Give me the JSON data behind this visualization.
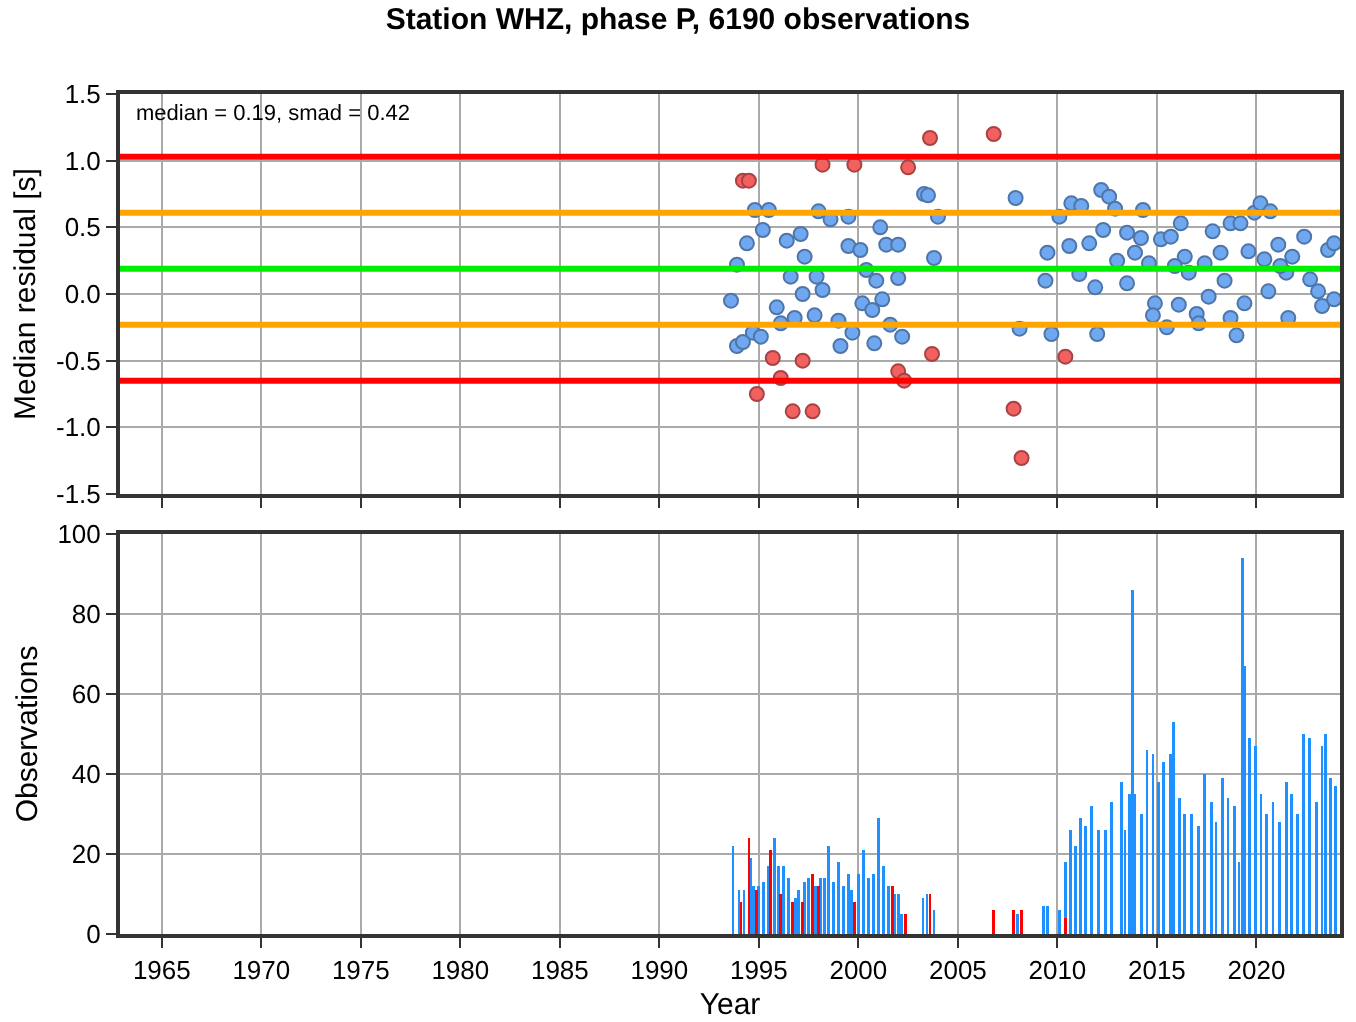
{
  "chart_data": [
    {
      "type": "scatter",
      "title": "Station WHZ, phase P, 6190 observations",
      "ylabel": "Median residual [s]",
      "annotations": [
        "median = 0.19, smad = 0.42"
      ],
      "xlim": [
        1962.9,
        2024.2
      ],
      "xticks": [
        1965,
        1970,
        1975,
        1980,
        1985,
        1990,
        1995,
        2000,
        2005,
        2010,
        2015,
        2020
      ],
      "ylim": [
        -1.5,
        1.5
      ],
      "yticks": [
        {
          "value": -1.5,
          "label": "-1.5"
        },
        {
          "value": -1,
          "label": "-1.0"
        },
        {
          "value": -0.5,
          "label": "-0.5"
        },
        {
          "value": 0,
          "label": "0.0"
        },
        {
          "value": 0.5,
          "label": "0.5"
        },
        {
          "value": 1,
          "label": "1.0"
        },
        {
          "value": 1.5,
          "label": "1.5"
        }
      ],
      "tick_labels": "y",
      "grid": true,
      "marker": "circle",
      "ref_lines": [
        {
          "axis": "y",
          "value": 1.03,
          "color": "#ff0000"
        },
        {
          "axis": "y",
          "value": 0.61,
          "color": "#ffa500"
        },
        {
          "axis": "y",
          "value": 0.19,
          "color": "#00ee00"
        },
        {
          "axis": "y",
          "value": -0.23,
          "color": "#ffa500"
        },
        {
          "axis": "y",
          "value": -0.65,
          "color": "#ff0000"
        }
      ],
      "series": [
        {
          "color": "#6fa8f0",
          "x": [
            2007.9,
            2008.1,
            2009.7,
            2009.5,
            2009.4,
            2003.3,
            2003.5,
            2004.0,
            2003.8,
            1994.8,
            1995.5,
            1993.9,
            1994.2,
            1993.6,
            1993.9,
            1994.4,
            1995.2,
            1994.7,
            1995.1,
            1995.9,
            1996.1,
            1996.4,
            1997.1,
            1997.3,
            1997.9,
            1998.0,
            1998.6,
            1999.5,
            1999.5,
            2000.1,
            1997.8,
            1999.0,
            1999.1,
            1999.7,
            2000.2,
            2000.7,
            2000.8,
            2001.1,
            2001.4,
            2001.6,
            2002.0,
            2002.2,
            2002.0,
            2001.2,
            1998.2,
            1996.6,
            1996.8,
            1997.2,
            2000.4,
            2000.9,
            2010.1,
            2010.7,
            2011.2,
            2012.2,
            2012.6,
            2012.9,
            2010.6,
            2011.1,
            2011.9,
            2012.0,
            2012.3,
            2013.0,
            2013.5,
            2014.2,
            2014.3,
            2014.6,
            2014.9,
            2014.8,
            2015.5,
            2015.2,
            2015.7,
            2016.2,
            2016.1,
            2016.6,
            2017.0,
            2017.1,
            2017.6,
            2017.8,
            2018.2,
            2018.7,
            2019.2,
            2019.0,
            2018.7,
            2019.4,
            2019.6,
            2019.9,
            2020.2,
            2020.7,
            2020.6,
            2021.1,
            2021.5,
            2021.6,
            2021.8,
            2022.4,
            2022.7,
            2023.1,
            2023.3,
            2023.6,
            2023.9,
            2023.9,
            2016.4,
            2017.4,
            2018.4,
            2020.4,
            2021.2,
            2015.9,
            2013.9,
            2011.6,
            2013.5
          ],
          "values": [
            0.72,
            -0.26,
            -0.3,
            0.31,
            0.1,
            0.75,
            0.74,
            0.58,
            0.27,
            0.63,
            0.63,
            -0.39,
            -0.36,
            -0.05,
            0.22,
            0.38,
            0.48,
            -0.29,
            -0.32,
            -0.1,
            -0.22,
            0.4,
            0.45,
            0.28,
            0.13,
            0.62,
            0.56,
            0.58,
            0.36,
            0.33,
            -0.16,
            -0.2,
            -0.39,
            -0.29,
            -0.07,
            -0.12,
            -0.37,
            0.5,
            0.37,
            -0.23,
            0.37,
            -0.32,
            0.12,
            -0.04,
            0.03,
            0.13,
            -0.18,
            0,
            0.18,
            0.1,
            0.58,
            0.68,
            0.66,
            0.78,
            0.73,
            0.64,
            0.36,
            0.15,
            0.05,
            -0.3,
            0.48,
            0.25,
            0.46,
            0.42,
            0.63,
            0.23,
            -0.07,
            -0.16,
            -0.25,
            0.41,
            0.43,
            0.53,
            -0.08,
            0.16,
            -0.15,
            -0.22,
            -0.02,
            0.47,
            0.31,
            0.53,
            0.53,
            -0.31,
            -0.18,
            -0.07,
            0.32,
            0.61,
            0.68,
            0.62,
            0.02,
            0.37,
            0.16,
            -0.18,
            0.28,
            0.43,
            0.11,
            0.02,
            -0.09,
            0.33,
            0.38,
            -0.04,
            0.28,
            0.23,
            0.1,
            0.26,
            0.21,
            0.21,
            0.31,
            0.38,
            0.08
          ]
        },
        {
          "color": "#f26060",
          "x": [
            1994.2,
            1994.5,
            1998.2,
            1999.8,
            2002.5,
            2003.6,
            2006.8,
            1995.7,
            1996.1,
            1994.9,
            1997.2,
            1996.7,
            1997.7,
            2002.0,
            2002.3,
            2003.7,
            2007.8,
            2008.2,
            2010.4
          ],
          "values": [
            0.85,
            0.85,
            0.97,
            0.97,
            0.95,
            1.17,
            1.2,
            -0.48,
            -0.63,
            -0.75,
            -0.5,
            -0.88,
            -0.88,
            -0.58,
            -0.65,
            -0.45,
            -0.86,
            -1.23,
            -0.47
          ]
        }
      ]
    },
    {
      "type": "bar",
      "xlabel": "Year",
      "ylabel": "Observations",
      "xlim": [
        1962.9,
        2024.2
      ],
      "xticks": [
        1965,
        1970,
        1975,
        1980,
        1985,
        1990,
        1995,
        2000,
        2005,
        2010,
        2015,
        2020
      ],
      "ylim": [
        0,
        100
      ],
      "yticks": [
        0,
        20,
        40,
        60,
        80,
        100
      ],
      "grid": true,
      "series": [
        {
          "color": "#1e90ff",
          "x": [
            1993.7,
            1994.0,
            1994.25,
            1994.6,
            1994.75,
            1995.0,
            1995.25,
            1995.5,
            1995.8,
            1996.0,
            1996.25,
            1996.5,
            1996.85,
            1997.0,
            1997.3,
            1997.5,
            1997.85,
            1998.1,
            1998.3,
            1998.5,
            1998.75,
            1999.0,
            1999.25,
            1999.5,
            1999.65,
            2000.0,
            2000.25,
            2000.5,
            2000.75,
            2001.0,
            2001.25,
            2001.5,
            2001.8,
            2002.0,
            2002.15,
            2003.25,
            2003.45,
            2003.8,
            2008.0,
            2009.3,
            2009.5,
            2010.1,
            2010.4,
            2010.67,
            2010.9,
            2011.17,
            2011.43,
            2011.73,
            2012.07,
            2012.4,
            2012.73,
            2013.23,
            2013.4,
            2013.63,
            2013.77,
            2013.9,
            2014.23,
            2014.5,
            2014.8,
            2015.07,
            2015.33,
            2015.67,
            2015.83,
            2016.13,
            2016.4,
            2016.73,
            2017.07,
            2017.4,
            2017.73,
            2017.97,
            2018.3,
            2018.57,
            2018.9,
            2019.13,
            2019.3,
            2019.4,
            2019.67,
            2019.97,
            2020.23,
            2020.5,
            2020.83,
            2021.17,
            2021.5,
            2021.77,
            2022.07,
            2022.37,
            2022.67,
            2023.0,
            2023.3,
            2023.47,
            2023.73,
            2023.97
          ],
          "values": [
            22,
            11,
            11,
            19,
            12,
            12,
            13,
            17,
            24,
            17,
            17,
            14,
            9,
            11,
            13,
            14,
            12,
            14,
            14,
            22,
            13,
            18,
            12,
            15,
            11,
            15,
            21,
            14,
            15,
            29,
            17,
            12,
            10,
            10,
            5,
            9,
            10,
            6,
            5,
            7,
            7,
            6,
            18,
            26,
            22,
            29,
            27,
            32,
            26,
            26,
            33,
            38,
            26,
            35,
            86,
            35,
            30,
            46,
            45,
            38,
            43,
            45,
            53,
            34,
            30,
            30,
            27,
            40,
            33,
            28,
            39,
            34,
            32,
            18,
            94,
            67,
            49,
            47,
            35,
            30,
            33,
            28,
            38,
            35,
            30,
            50,
            49,
            33,
            47,
            50,
            39,
            37
          ]
        },
        {
          "color": "#ff0000",
          "x": [
            1994.1,
            1994.5,
            1994.9,
            1995.6,
            1996.1,
            1996.7,
            1997.2,
            1997.7,
            1998.0,
            1999.8,
            2001.7,
            2002.35,
            2003.6,
            2006.8,
            2007.8,
            2008.2,
            2010.4
          ],
          "values": [
            8,
            24,
            11,
            21,
            10,
            8,
            8,
            15,
            12,
            8,
            12,
            5,
            10,
            6,
            6,
            6,
            4
          ]
        }
      ]
    }
  ]
}
